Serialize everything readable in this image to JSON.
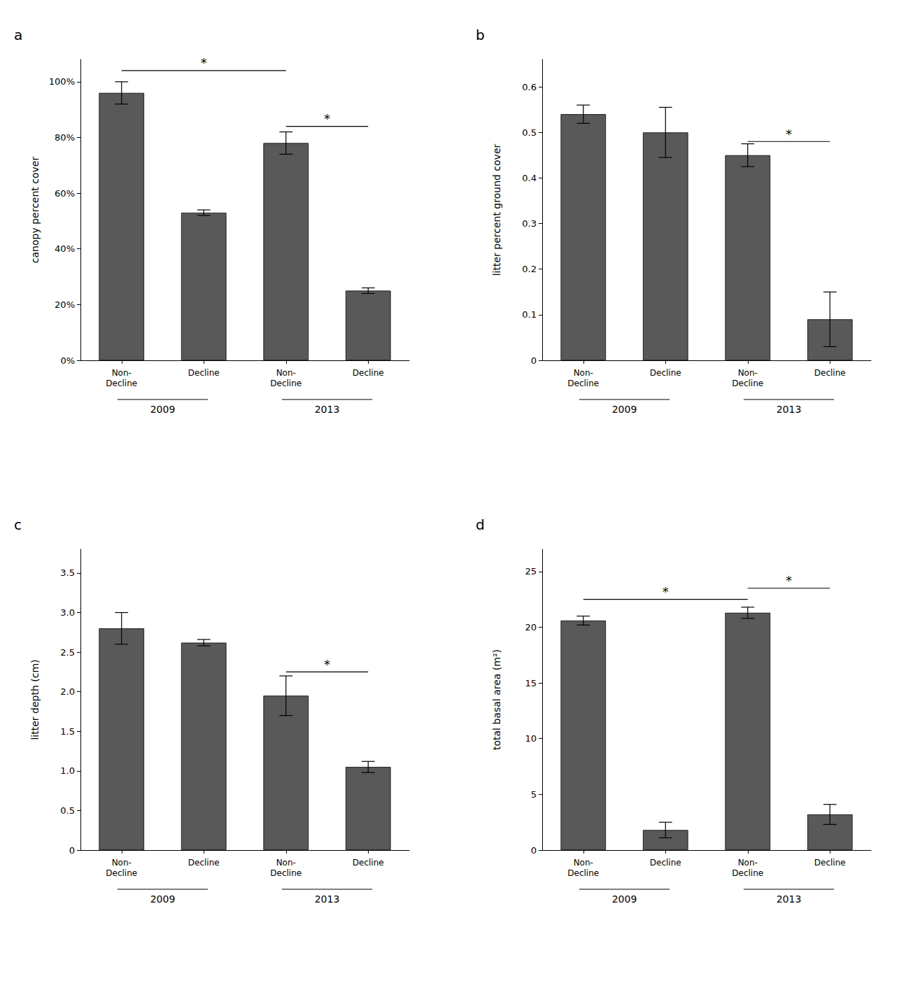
{
  "chart_data": [
    {
      "type": "bar",
      "title": "a",
      "ylabel": "canopy percent cover",
      "categories": [
        "Non-\nDecline",
        "Decline",
        "Non-\nDecline",
        "Decline"
      ],
      "values": [
        96,
        53,
        78,
        25
      ],
      "errors": [
        4,
        1,
        4,
        1
      ],
      "color": "#595959",
      "ylim": [
        0,
        108
      ],
      "yticks": [
        {
          "value": 0,
          "label": "0%"
        },
        {
          "value": 20,
          "label": "20%"
        },
        {
          "value": 40,
          "label": "40%"
        },
        {
          "value": 60,
          "label": "60%"
        },
        {
          "value": 80,
          "label": "80%"
        },
        {
          "value": 100,
          "label": "100%"
        }
      ],
      "grid": false,
      "annotations": [
        {
          "text": "2009",
          "between": [
            0,
            1
          ]
        },
        {
          "text": "2013",
          "between": [
            2,
            3
          ]
        },
        {
          "text": "*",
          "between": [
            0,
            2
          ],
          "y": 104
        },
        {
          "text": "*",
          "between": [
            2,
            3
          ],
          "y": 84
        }
      ]
    },
    {
      "type": "bar",
      "title": "b",
      "ylabel": "litter percent ground cover",
      "categories": [
        "Non-\nDecline",
        "Decline",
        "Non-\nDecline",
        "Decline"
      ],
      "values": [
        0.54,
        0.5,
        0.45,
        0.09
      ],
      "errors": [
        0.02,
        0.055,
        0.025,
        0.06
      ],
      "color": "#595959",
      "ylim": [
        0,
        0.66
      ],
      "yticks": [
        0,
        0.1,
        0.2,
        0.3,
        0.4,
        0.5,
        0.6
      ],
      "grid": false,
      "annotations": [
        {
          "text": "2009",
          "between": [
            0,
            1
          ]
        },
        {
          "text": "2013",
          "between": [
            2,
            3
          ]
        },
        {
          "text": "*",
          "between": [
            2,
            3
          ],
          "y": 0.48
        }
      ]
    },
    {
      "type": "bar",
      "title": "c",
      "ylabel": "litter depth (cm)",
      "categories": [
        "Non-\nDecline",
        "Decline",
        "Non-\nDecline",
        "Decline"
      ],
      "values": [
        2.8,
        2.62,
        1.95,
        1.05
      ],
      "errors": [
        0.2,
        0.04,
        0.25,
        0.07
      ],
      "color": "#595959",
      "ylim": [
        0,
        3.8
      ],
      "yticks": [
        0,
        0.5,
        {
          "value": 1.0,
          "label": "1.0"
        },
        1.5,
        {
          "value": 2.0,
          "label": "2.0"
        },
        2.5,
        {
          "value": 3.0,
          "label": "3.0"
        },
        3.5
      ],
      "grid": false,
      "annotations": [
        {
          "text": "2009",
          "between": [
            0,
            1
          ]
        },
        {
          "text": "2013",
          "between": [
            2,
            3
          ]
        },
        {
          "text": "*",
          "between": [
            2,
            3
          ],
          "y": 2.25
        }
      ]
    },
    {
      "type": "bar",
      "title": "d",
      "ylabel": "total basal area (m²)",
      "categories": [
        "Non-\nDecline",
        "Decline",
        "Non-\nDecline",
        "Decline"
      ],
      "values": [
        20.6,
        1.8,
        21.3,
        3.2
      ],
      "errors": [
        0.4,
        0.7,
        0.5,
        0.9
      ],
      "color": "#595959",
      "ylim": [
        0,
        27
      ],
      "yticks": [
        0,
        5,
        10,
        15,
        20,
        25
      ],
      "grid": false,
      "annotations": [
        {
          "text": "2009",
          "between": [
            0,
            1
          ]
        },
        {
          "text": "2013",
          "between": [
            2,
            3
          ]
        },
        {
          "text": "*",
          "between": [
            0,
            2
          ],
          "y": 22.5
        },
        {
          "text": "*",
          "between": [
            2,
            3
          ],
          "y": 23.5
        }
      ]
    }
  ]
}
